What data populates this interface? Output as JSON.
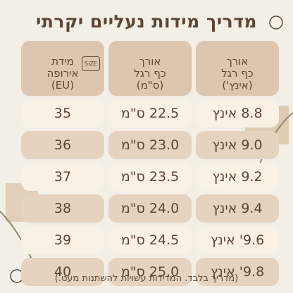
{
  "title": "מדריך מידות נעליים יקרתי",
  "size_badge": "SIZE",
  "header": [
    {
      "lines": [
        "אורך",
        "כף רגל",
        "(אינץ')"
      ]
    },
    {
      "lines": [
        "אורך",
        "כף רגל",
        "(ס\"מ)"
      ]
    },
    {
      "lines": [
        "מידת",
        "אירופה",
        "(EU)"
      ]
    }
  ],
  "rows": [
    [
      "8.8 אינץ",
      "22.5 ס\"מ",
      "35"
    ],
    [
      "9.0 אינץ",
      "23.0 ס\"מ",
      "36"
    ],
    [
      "9.2 אינץ",
      "23.5 ס\"מ",
      "37"
    ],
    [
      "9.4 אינץ",
      "24.0 ס\"מ",
      "38"
    ],
    [
      "9.6' אינץ",
      "24.5 ס\"מ",
      "39"
    ],
    [
      "9.8' אינץ",
      "25.0 ס\"מ",
      "40"
    ]
  ],
  "footer": "(מדריך בלבד. המדידות עשויות להשתנות מעט.)"
}
